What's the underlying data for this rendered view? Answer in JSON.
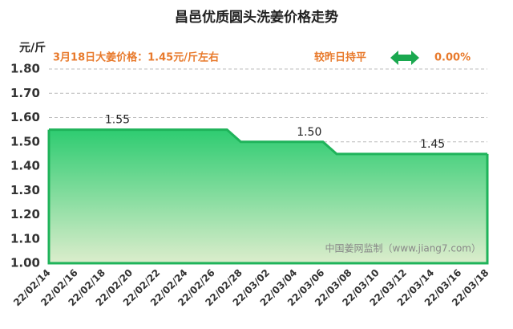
{
  "chart_data": {
    "type": "area",
    "title": "昌邑优质圆头洗姜价格走势",
    "y_label": "元/斤",
    "annotations": [
      "3月18日大姜价格：1.45元/斤左右",
      "较昨日持平",
      "0.00%"
    ],
    "watermark": "中国姜网监制（www.jiang7.com）",
    "categories": [
      "22/02/14",
      null,
      "22/02/16",
      null,
      "22/02/18",
      null,
      "22/02/20",
      null,
      "22/02/22",
      null,
      "22/02/24",
      null,
      "22/02/26",
      null,
      "22/02/28",
      null,
      "22/03/02",
      null,
      "22/03/04",
      null,
      "22/03/06",
      null,
      "22/03/08",
      null,
      "22/03/10",
      null,
      "22/03/12",
      null,
      "22/03/14",
      null,
      "22/03/16",
      null,
      "22/03/18"
    ],
    "values": [
      1.55,
      1.55,
      1.55,
      1.55,
      1.55,
      1.55,
      1.55,
      1.55,
      1.55,
      1.55,
      1.55,
      1.55,
      1.55,
      1.55,
      1.5,
      1.5,
      1.5,
      1.5,
      1.5,
      1.5,
      1.5,
      1.45,
      1.45,
      1.45,
      1.45,
      1.45,
      1.45,
      1.45,
      1.45,
      1.45,
      1.45,
      1.45,
      1.45
    ],
    "value_labels": [
      null,
      null,
      null,
      null,
      null,
      "1.55",
      null,
      null,
      null,
      null,
      null,
      null,
      null,
      null,
      null,
      null,
      null,
      null,
      null,
      "1.50",
      null,
      null,
      null,
      null,
      null,
      null,
      null,
      null,
      "1.45",
      null,
      null,
      null,
      null
    ],
    "color": "#1fb35a",
    "ylim": [
      1.0,
      1.8
    ],
    "yticks": [
      {
        "value": 1.0,
        "label": "1.00"
      },
      {
        "value": 1.1,
        "label": "1.10"
      },
      {
        "value": 1.2,
        "label": "1.20"
      },
      {
        "value": 1.3,
        "label": "1.30"
      },
      {
        "value": 1.4,
        "label": "1.40"
      },
      {
        "value": 1.5,
        "label": "1.50"
      },
      {
        "value": 1.6,
        "label": "1.60"
      },
      {
        "value": 1.7,
        "label": "1.70"
      },
      {
        "value": 1.8,
        "label": "1.80"
      }
    ],
    "grid": true
  }
}
